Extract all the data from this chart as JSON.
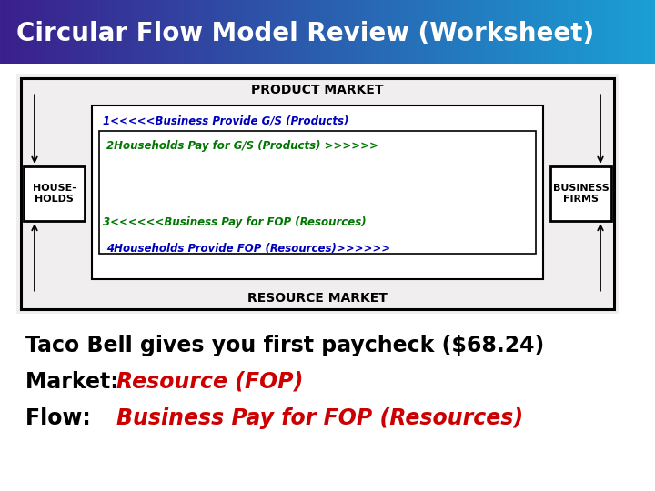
{
  "title": "Circular Flow Model Review (Worksheet)",
  "title_bg_left": "#3b1f8c",
  "title_bg_right": "#1aa0d4",
  "title_color": "#ffffff",
  "title_fontsize": 20,
  "body_bg": "#ffffff",
  "scenario_text": "Taco Bell gives you first paycheck ($68.24)",
  "scenario_fontsize": 17,
  "market_label": "Market: ",
  "market_answer": "Resource (FOP)",
  "market_answer_color": "#cc0000",
  "market_fontsize": 17,
  "flow_label": "Flow:   ",
  "flow_answer": "Business Pay for FOP (Resources)",
  "flow_answer_color": "#cc0000",
  "flow_fontsize": 17,
  "diagram": {
    "product_market_label": "PRODUCT MARKET",
    "resource_market_label": "RESOURCE MARKET",
    "households_label": "HOUSE-\nHOLDS",
    "business_label": "BUSINESS\nFIRMS",
    "flow1_text": "1<<<<<Business Provide G/S (Products)",
    "flow2_text": "2Households Pay for G/S (Products) >>>>>>",
    "flow3_text": "3<<<<<<Business Pay for FOP (Resources)",
    "flow4_text": "4Households Provide FOP (Resources)>>>>>>",
    "flow1_color": "#0000bb",
    "flow2_color": "#007700",
    "flow3_color": "#007700",
    "flow4_color": "#0000bb",
    "diagram_bg": "#f0eeee"
  }
}
